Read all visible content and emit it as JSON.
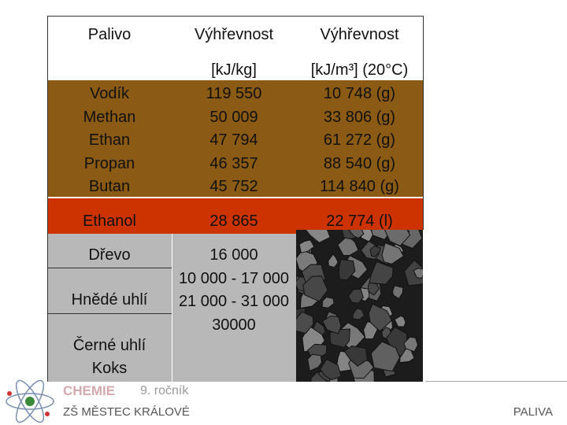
{
  "header": [
    "Palivo",
    "Výhřevnost",
    "Výhřevnost"
  ],
  "units": [
    "[kJ/kg]",
    "[kJ/m³] (20°C)"
  ],
  "gases": [
    [
      "Vodík",
      "119 550",
      "10 748 (g)"
    ],
    [
      "Methan",
      "50 009",
      "33 806 (g)"
    ],
    [
      "Ethan",
      "47 794",
      "61 272 (g)"
    ],
    [
      "Propan",
      "46 357",
      "88 540 (g)"
    ],
    [
      "Butan",
      "45 752",
      "114 840 (g)"
    ]
  ],
  "ethanol": [
    "Ethanol",
    "28 865",
    "22 774 (l)"
  ],
  "solids": [
    [
      "Dřevo",
      "16 000"
    ],
    [
      "Hnědé uhlí",
      "10 000 - 17 000"
    ],
    [
      "Černé uhlí",
      "21 000 - 31 000"
    ],
    [
      "Koks",
      "30000"
    ]
  ],
  "footer": {
    "brand": "CHEMIE",
    "grade": "9. ročník",
    "school": "ZŠ MĚSTEC KRÁLOVÉ",
    "topic": "PALIVA"
  }
}
